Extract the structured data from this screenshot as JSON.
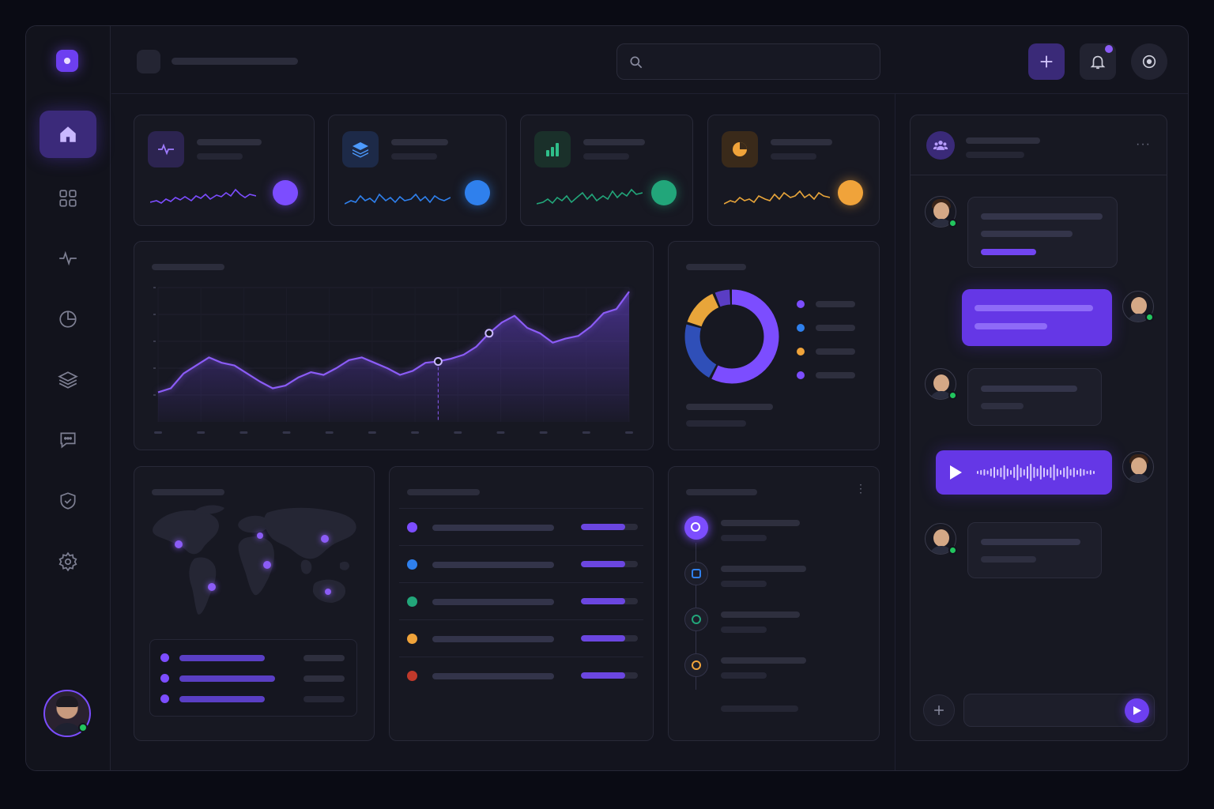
{
  "colors": {
    "accent": "#7c4dff",
    "blue": "#2f80ed",
    "green": "#22a67a",
    "orange": "#f0a33a",
    "red": "#c0392b"
  },
  "sidebar": {
    "items": [
      {
        "icon": "home-icon",
        "active": true
      },
      {
        "icon": "grid-icon",
        "active": false
      },
      {
        "icon": "activity-icon",
        "active": false
      },
      {
        "icon": "pie-chart-icon",
        "active": false
      },
      {
        "icon": "layers-icon",
        "active": false
      },
      {
        "icon": "message-icon",
        "active": false
      },
      {
        "icon": "shield-icon",
        "active": false
      },
      {
        "icon": "settings-icon",
        "active": false
      }
    ]
  },
  "header": {
    "search": {
      "placeholder": "",
      "icon": "search-icon"
    },
    "actions": [
      "plus-icon",
      "bell-icon",
      "target-icon"
    ],
    "notification_badge": true
  },
  "stat_cards": [
    {
      "icon": "pulse-icon",
      "color": "#7c4dff"
    },
    {
      "icon": "layers-icon",
      "color": "#2f80ed"
    },
    {
      "icon": "bar-chart-icon",
      "color": "#22a67a"
    },
    {
      "icon": "pie-chart-icon",
      "color": "#f0a33a"
    }
  ],
  "chart_data": {
    "type": "area",
    "series": [
      {
        "values": [
          0.22,
          0.25,
          0.36,
          0.42,
          0.48,
          0.44,
          0.42,
          0.36,
          0.3,
          0.25,
          0.27,
          0.33,
          0.37,
          0.35,
          0.4,
          0.46,
          0.48,
          0.44,
          0.4,
          0.35,
          0.38,
          0.44,
          0.45,
          0.47,
          0.5,
          0.56,
          0.66,
          0.74,
          0.79,
          0.7,
          0.66,
          0.59,
          0.62,
          0.64,
          0.71,
          0.81,
          0.84,
          0.97
        ]
      }
    ],
    "highlighted_points": [
      22,
      26
    ],
    "grid": true,
    "legend": "none"
  },
  "donut": {
    "segments": [
      {
        "value": 58,
        "color": "#7c4dff"
      },
      {
        "value": 22,
        "color": "#2f4fb8"
      },
      {
        "value": 14,
        "color": "#e8a53a"
      },
      {
        "value": 6,
        "color": "#5a3dc4"
      }
    ],
    "legend_colors": [
      "#7c4dff",
      "#2f80ed",
      "#f0a33a",
      "#7c4dff"
    ]
  },
  "map": {
    "markers": 6,
    "legend_rows": 3
  },
  "list": {
    "rows": [
      {
        "color": "#7c4dff",
        "progress": 0.78
      },
      {
        "color": "#2f80ed",
        "progress": 0.78
      },
      {
        "color": "#22a67a",
        "progress": 0.78
      },
      {
        "color": "#f0a33a",
        "progress": 0.78
      },
      {
        "color": "#c0392b",
        "progress": 0.78
      }
    ]
  },
  "timeline": {
    "items": [
      {
        "icon": "record-icon",
        "color": "#7c4dff"
      },
      {
        "icon": "box-icon",
        "color": "#2f80ed"
      },
      {
        "icon": "pie-icon",
        "color": "#22a67a"
      },
      {
        "icon": "chart-icon",
        "color": "#f0a33a"
      }
    ]
  },
  "chat": {
    "header_icon": "users-icon",
    "messages": [
      {
        "from": "them",
        "type": "text"
      },
      {
        "from": "me",
        "type": "text"
      },
      {
        "from": "them",
        "type": "text"
      },
      {
        "from": "me",
        "type": "voice"
      },
      {
        "from": "them",
        "type": "text"
      }
    ],
    "composer": {
      "placeholder": ""
    }
  }
}
